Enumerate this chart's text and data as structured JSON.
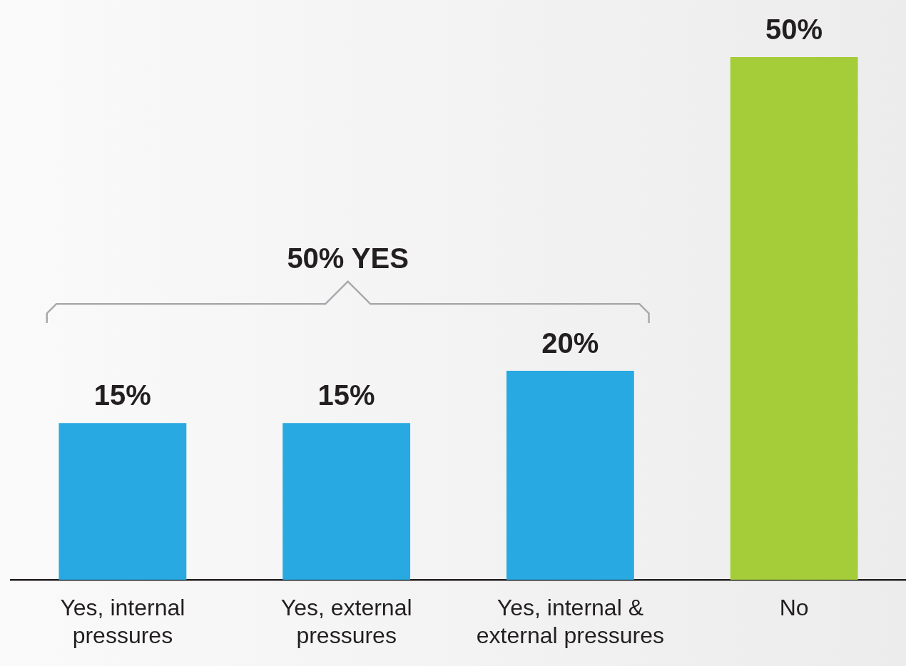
{
  "chart_data": {
    "type": "bar",
    "categories": [
      "Yes, internal pressures",
      "Yes, external pressures",
      "Yes, internal & external pressures",
      "No"
    ],
    "values": [
      15,
      15,
      20,
      50
    ],
    "colors": [
      "#29a9e1",
      "#29a9e1",
      "#29a9e1",
      "#a5cd39"
    ],
    "value_labels": [
      "15%",
      "15%",
      "20%",
      "50%"
    ],
    "annotations": [
      "50% YES"
    ],
    "grid": false,
    "legend": false,
    "tick_labels": "x"
  }
}
